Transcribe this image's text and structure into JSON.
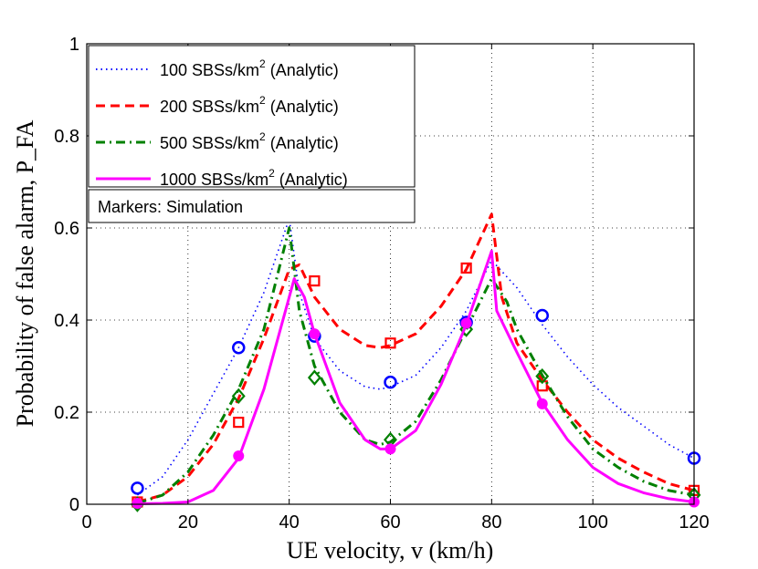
{
  "chart_data": {
    "type": "line",
    "title": "",
    "xlabel": "UE velocity, v (km/h)",
    "ylabel": "Probability of false alarm, P_FA",
    "xlim": [
      0,
      120
    ],
    "ylim": [
      0,
      1
    ],
    "xticks": [
      "0",
      "20",
      "40",
      "60",
      "80",
      "100",
      "120"
    ],
    "yticks": [
      "0",
      "0.2",
      "0.4",
      "0.6",
      "0.8",
      "1"
    ],
    "grid": true,
    "legend_position": "top-left",
    "simulation_note": "Markers: Simulation",
    "series": [
      {
        "name": "100 SBSs/km2 (Analytic)",
        "label_main": "100 SBSs/km",
        "label_sup": "2",
        "label_tail": " (Analytic)",
        "color": "#0000ff",
        "line_style": "dotted",
        "marker": "circle",
        "curve": [
          [
            10,
            0.02
          ],
          [
            15,
            0.06
          ],
          [
            20,
            0.14
          ],
          [
            25,
            0.24
          ],
          [
            30,
            0.34
          ],
          [
            35,
            0.46
          ],
          [
            40,
            0.62
          ],
          [
            42,
            0.46
          ],
          [
            45,
            0.36
          ],
          [
            50,
            0.29
          ],
          [
            55,
            0.255
          ],
          [
            58,
            0.25
          ],
          [
            60,
            0.255
          ],
          [
            65,
            0.28
          ],
          [
            70,
            0.34
          ],
          [
            75,
            0.42
          ],
          [
            80,
            0.53
          ],
          [
            85,
            0.47
          ],
          [
            90,
            0.39
          ],
          [
            95,
            0.32
          ],
          [
            100,
            0.26
          ],
          [
            105,
            0.21
          ],
          [
            110,
            0.17
          ],
          [
            115,
            0.13
          ],
          [
            120,
            0.1
          ]
        ],
        "sim": [
          [
            10,
            0.035
          ],
          [
            30,
            0.34
          ],
          [
            45,
            0.365
          ],
          [
            60,
            0.265
          ],
          [
            75,
            0.395
          ],
          [
            90,
            0.41
          ],
          [
            120,
            0.1
          ]
        ]
      },
      {
        "name": "200 SBSs/km2 (Analytic)",
        "label_main": "200 SBSs/km",
        "label_sup": "2",
        "label_tail": " (Analytic)",
        "color": "#ff0000",
        "line_style": "dashed",
        "marker": "square",
        "curve": [
          [
            10,
            0.005
          ],
          [
            15,
            0.02
          ],
          [
            20,
            0.06
          ],
          [
            25,
            0.13
          ],
          [
            30,
            0.23
          ],
          [
            35,
            0.36
          ],
          [
            40,
            0.51
          ],
          [
            42,
            0.52
          ],
          [
            45,
            0.45
          ],
          [
            50,
            0.38
          ],
          [
            55,
            0.345
          ],
          [
            58,
            0.34
          ],
          [
            60,
            0.345
          ],
          [
            65,
            0.37
          ],
          [
            70,
            0.43
          ],
          [
            75,
            0.51
          ],
          [
            80,
            0.63
          ],
          [
            82,
            0.45
          ],
          [
            85,
            0.35
          ],
          [
            90,
            0.27
          ],
          [
            95,
            0.2
          ],
          [
            100,
            0.14
          ],
          [
            105,
            0.1
          ],
          [
            110,
            0.07
          ],
          [
            115,
            0.045
          ],
          [
            120,
            0.03
          ]
        ],
        "sim": [
          [
            10,
            0.005
          ],
          [
            30,
            0.178
          ],
          [
            45,
            0.485
          ],
          [
            60,
            0.35
          ],
          [
            75,
            0.513
          ],
          [
            90,
            0.257
          ],
          [
            120,
            0.03
          ]
        ]
      },
      {
        "name": "500 SBSs/km2 (Analytic)",
        "label_main": "500 SBSs/km",
        "label_sup": "2",
        "label_tail": " (Analytic)",
        "color": "#008000",
        "line_style": "dashdot",
        "marker": "diamond",
        "curve": [
          [
            10,
            0.002
          ],
          [
            15,
            0.02
          ],
          [
            20,
            0.07
          ],
          [
            25,
            0.15
          ],
          [
            30,
            0.25
          ],
          [
            35,
            0.38
          ],
          [
            40,
            0.6
          ],
          [
            42,
            0.42
          ],
          [
            45,
            0.3
          ],
          [
            50,
            0.2
          ],
          [
            55,
            0.14
          ],
          [
            58,
            0.13
          ],
          [
            60,
            0.135
          ],
          [
            65,
            0.18
          ],
          [
            70,
            0.27
          ],
          [
            75,
            0.38
          ],
          [
            80,
            0.49
          ],
          [
            83,
            0.44
          ],
          [
            85,
            0.38
          ],
          [
            90,
            0.28
          ],
          [
            95,
            0.19
          ],
          [
            100,
            0.12
          ],
          [
            105,
            0.08
          ],
          [
            110,
            0.05
          ],
          [
            115,
            0.03
          ],
          [
            120,
            0.02
          ]
        ],
        "sim": [
          [
            10,
            0.0
          ],
          [
            30,
            0.235
          ],
          [
            45,
            0.275
          ],
          [
            60,
            0.14
          ],
          [
            75,
            0.38
          ],
          [
            90,
            0.278
          ],
          [
            120,
            0.02
          ]
        ]
      },
      {
        "name": "1000 SBSs/km2 (Analytic)",
        "label_main": "1000 SBSs/km",
        "label_sup": "2",
        "label_tail": " (Analytic)",
        "color": "#ff00ff",
        "line_style": "solid",
        "marker": "filled-circle",
        "curve": [
          [
            10,
            0.001
          ],
          [
            15,
            0.002
          ],
          [
            20,
            0.005
          ],
          [
            25,
            0.03
          ],
          [
            30,
            0.1
          ],
          [
            35,
            0.25
          ],
          [
            40,
            0.45
          ],
          [
            41,
            0.49
          ],
          [
            43,
            0.45
          ],
          [
            45,
            0.37
          ],
          [
            50,
            0.22
          ],
          [
            55,
            0.14
          ],
          [
            58,
            0.12
          ],
          [
            60,
            0.12
          ],
          [
            65,
            0.16
          ],
          [
            70,
            0.26
          ],
          [
            75,
            0.39
          ],
          [
            80,
            0.55
          ],
          [
            81,
            0.42
          ],
          [
            85,
            0.33
          ],
          [
            90,
            0.22
          ],
          [
            95,
            0.14
          ],
          [
            100,
            0.08
          ],
          [
            105,
            0.045
          ],
          [
            110,
            0.025
          ],
          [
            115,
            0.012
          ],
          [
            120,
            0.005
          ]
        ],
        "sim": [
          [
            10,
            0.002
          ],
          [
            30,
            0.105
          ],
          [
            45,
            0.37
          ],
          [
            60,
            0.12
          ],
          [
            75,
            0.393
          ],
          [
            90,
            0.218
          ],
          [
            120,
            0.005
          ]
        ]
      }
    ]
  }
}
